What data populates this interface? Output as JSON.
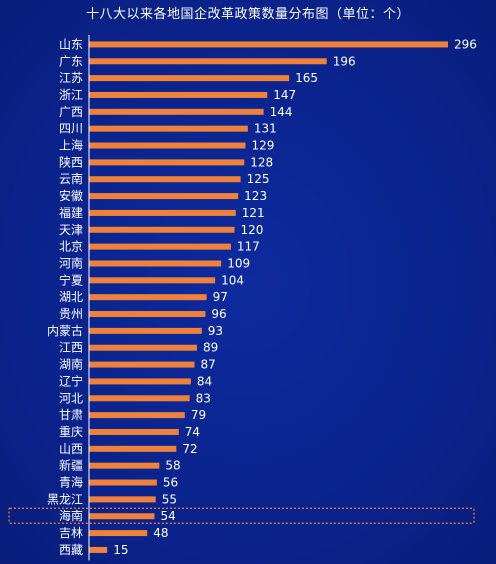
{
  "chart_data": {
    "type": "bar",
    "orientation": "horizontal",
    "title": "十八大以来各地国企改革政策数量分布图（单位：个）",
    "categories": [
      "山东",
      "广东",
      "江苏",
      "浙江",
      "广西",
      "四川",
      "上海",
      "陕西",
      "云南",
      "安徽",
      "福建",
      "天津",
      "北京",
      "河南",
      "宁夏",
      "湖北",
      "贵州",
      "内蒙古",
      "江西",
      "湖南",
      "辽宁",
      "河北",
      "甘肃",
      "重庆",
      "山西",
      "新疆",
      "青海",
      "黑龙江",
      "海南",
      "吉林",
      "西藏"
    ],
    "values": [
      296,
      196,
      165,
      147,
      144,
      131,
      129,
      128,
      125,
      123,
      121,
      120,
      117,
      109,
      104,
      97,
      96,
      93,
      89,
      87,
      84,
      83,
      79,
      74,
      72,
      58,
      56,
      55,
      54,
      48,
      15
    ],
    "highlighted_category": "海南",
    "xlim": [
      0,
      296
    ],
    "grid": false,
    "colors": {
      "bar": "#f0813a",
      "background": "#0b2490",
      "text": "#ffffff"
    }
  }
}
